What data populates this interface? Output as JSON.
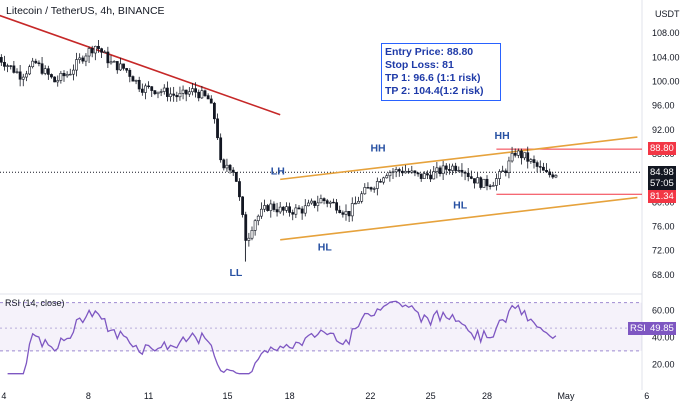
{
  "header": {
    "title": "Litecoin / TetherUS, 4h, BINANCE",
    "currency": "USDT"
  },
  "info_box": {
    "entry": "Entry Price: 88.80",
    "stop": "Stop Loss: 81",
    "tp1": "TP 1: 96.6 (1:1 risk)",
    "tp2": "TP 2: 104.4(1:2 risk)"
  },
  "price_tags": {
    "target": "88.80",
    "current_price": "84.98",
    "countdown": "57:05",
    "stop": "81.34",
    "rsi_label": "RSI",
    "rsi_value": "49.85"
  },
  "rsi_panel": {
    "label": "RSI (14, close)"
  },
  "annotations": [
    {
      "text": "LH"
    },
    {
      "text": "HH"
    },
    {
      "text": "HH"
    },
    {
      "text": "HL"
    },
    {
      "text": "HL"
    },
    {
      "text": "LL"
    }
  ],
  "chart_data": {
    "type": "candlestick",
    "price_ticks": [
      108,
      104,
      100,
      96,
      92,
      88,
      84,
      80,
      76,
      72,
      68
    ],
    "rsi_ticks": [
      60,
      40,
      20
    ],
    "x_ticks": [
      "4",
      "8",
      "11",
      "15",
      "18",
      "22",
      "25",
      "28",
      "May",
      "6"
    ],
    "ylim": [
      65.5,
      110.5
    ],
    "rsi_ylim": [
      12,
      68
    ],
    "levels": {
      "target": 88.8,
      "current": 84.98,
      "stop": 81.34
    },
    "downtrend_line": [
      [
        -1,
        111
      ],
      [
        14,
        94.5
      ]
    ],
    "channel_upper": [
      [
        14,
        83.8
      ],
      [
        33,
        90.8
      ]
    ],
    "channel_lower": [
      [
        14,
        73.8
      ],
      [
        33,
        80.8
      ]
    ],
    "colors": {
      "up": "#26a69a",
      "down": "#ef5350",
      "trend": "#c62828",
      "channel": "#e6a23c",
      "rsi": "#7e57c2",
      "label": "#2952a3"
    }
  }
}
